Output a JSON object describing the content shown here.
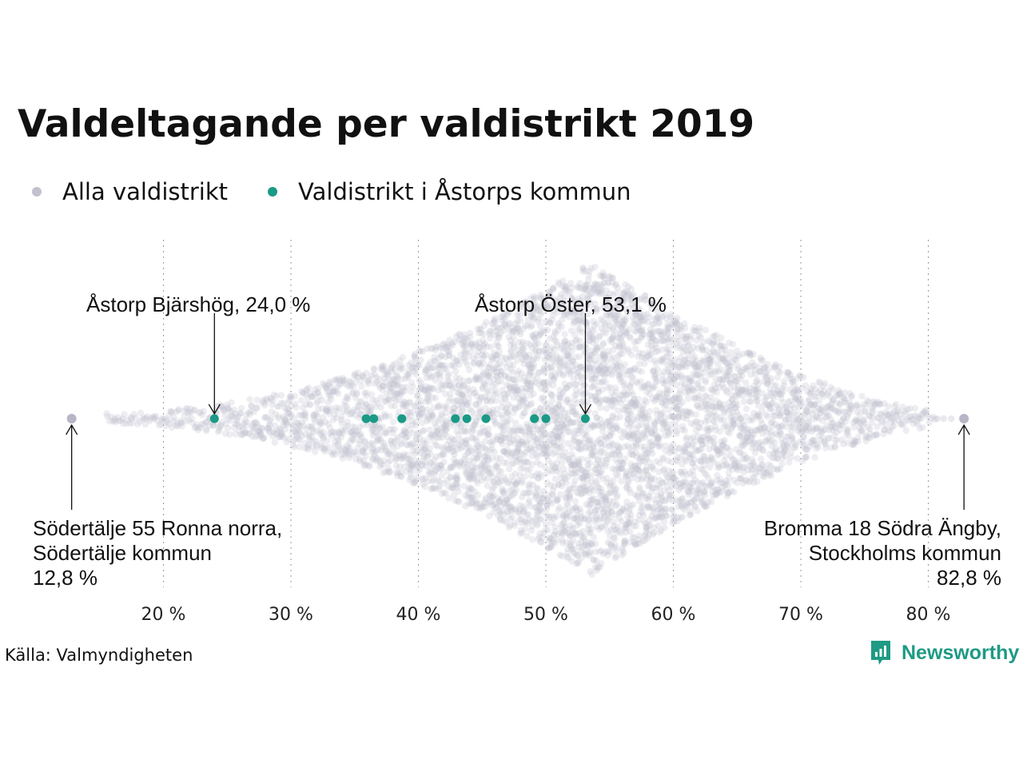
{
  "title": "Valdeltagande per valdistrikt 2019",
  "legend": [
    {
      "label": "Alla valdistrikt",
      "color": "#c3c1cf"
    },
    {
      "label": "Valdistrikt i Åstorps kommun",
      "color": "#1a9a86"
    }
  ],
  "source": "Källa: Valmyndigheten",
  "brand": {
    "name": "Newsworthy",
    "icon": "newsworthy-logo-icon",
    "color": "#1f9a84"
  },
  "chart_data": {
    "type": "scatter",
    "subtype": "beeswarm",
    "x_axis": {
      "range": [
        12,
        85
      ],
      "ticks": [
        20,
        30,
        40,
        50,
        60,
        70,
        80
      ],
      "tick_labels": [
        "20 %",
        "30 %",
        "40 %",
        "50 %",
        "60 %",
        "70 %",
        "80 %"
      ],
      "grid": "vertical dotted"
    },
    "series": [
      {
        "name": "Alla valdistrikt",
        "color": "#c3c1cf",
        "min": 12.8,
        "max": 82.8,
        "peak": 53.5,
        "distribution": "dense swarm, widest near 53 %"
      },
      {
        "name": "Valdistrikt i Åstorps kommun",
        "color": "#1a9a86",
        "values": [
          24.0,
          35.9,
          36.5,
          38.7,
          42.9,
          43.8,
          45.3,
          49.1,
          50.0,
          53.1
        ]
      }
    ],
    "annotations": [
      {
        "lines": [
          "Åstorp  Bjärshög, 24,0 %"
        ],
        "x": 24.0,
        "position": "above"
      },
      {
        "lines": [
          "Åstorp  Öster, 53,1 %"
        ],
        "x": 53.1,
        "position": "above"
      },
      {
        "lines": [
          "Södertälje 55 Ronna norra,",
          "Södertälje kommun",
          "12,8 %"
        ],
        "x": 12.8,
        "position": "below-left"
      },
      {
        "lines": [
          "Bromma 18 Södra Ängby,",
          "Stockholms kommun",
          "82,8 %"
        ],
        "x": 82.8,
        "position": "below-right"
      }
    ]
  }
}
